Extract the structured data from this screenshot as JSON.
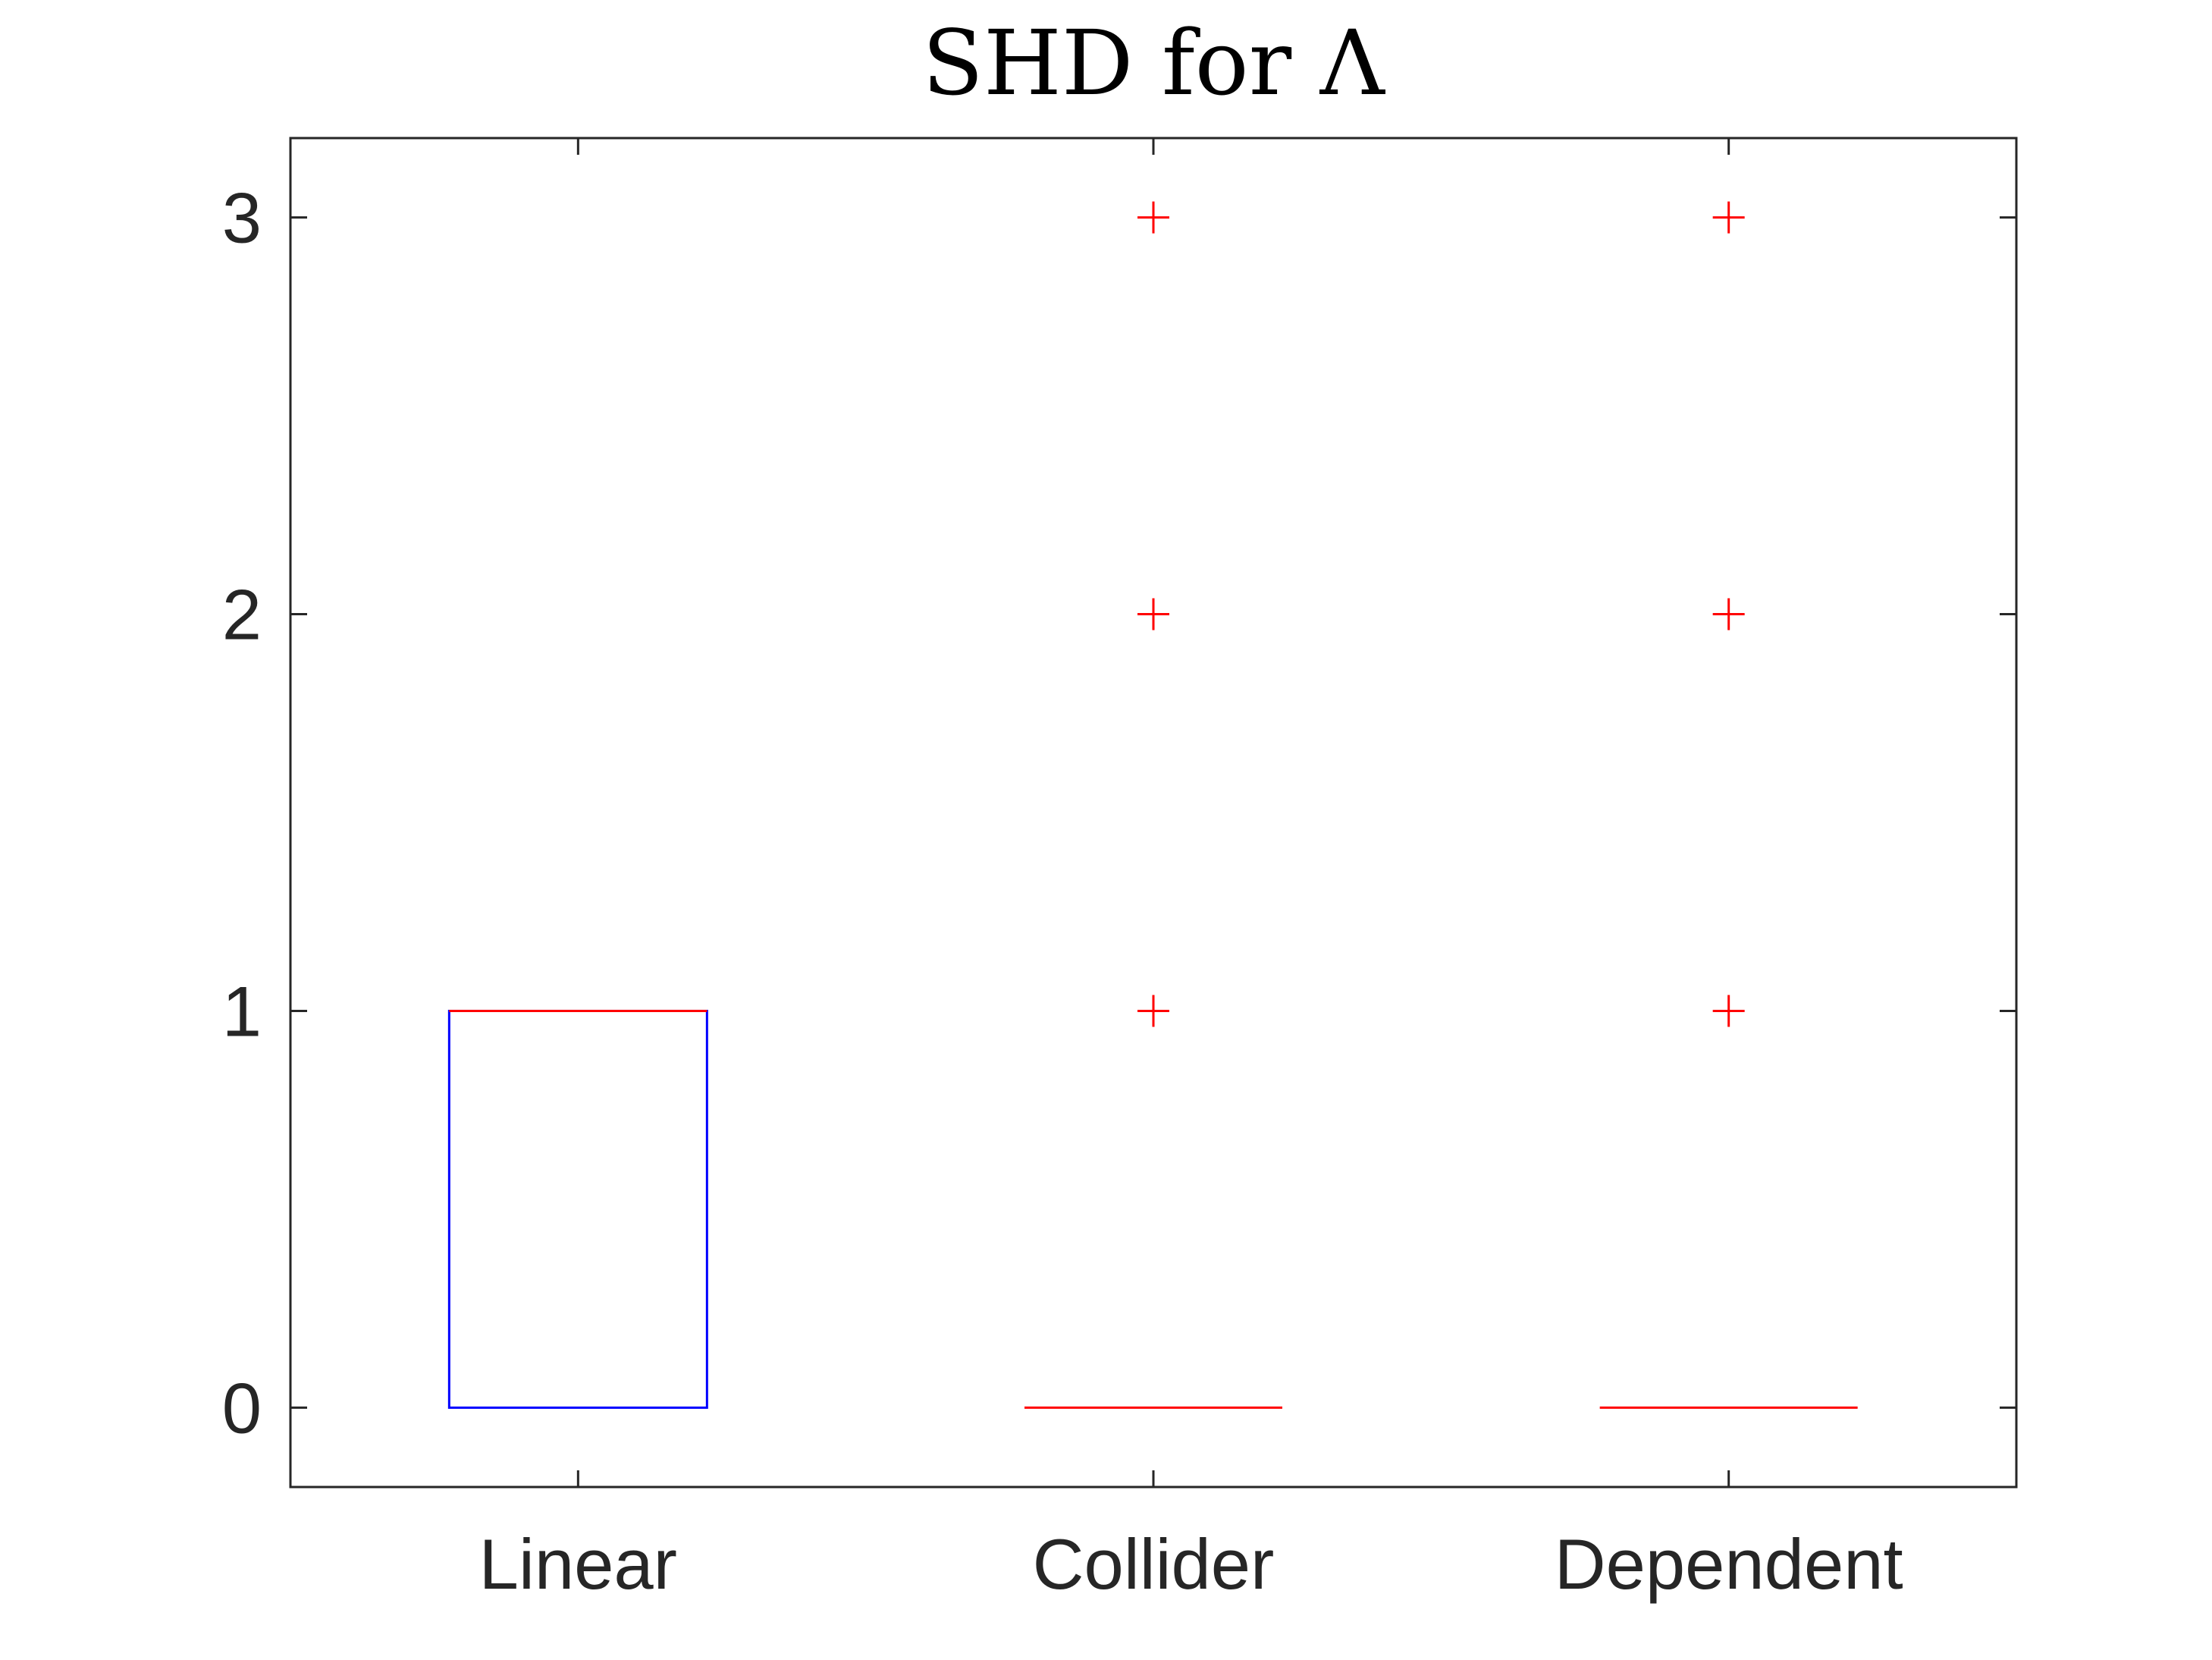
{
  "chart_data": {
    "type": "box",
    "title": "SHD for Λ",
    "xlabel": "",
    "ylabel": "",
    "categories": [
      "Linear",
      "Collider",
      "Dependent"
    ],
    "ylim": [
      -0.2,
      3.2
    ],
    "yticks": [
      "0",
      "1",
      "2",
      "3"
    ],
    "grid": false,
    "boxes": [
      {
        "category": "Linear",
        "q1": 0,
        "median": 1,
        "q3": 1,
        "whisker_low": 0,
        "whisker_high": 1,
        "outliers": []
      },
      {
        "category": "Collider",
        "q1": 0,
        "median": 0,
        "q3": 0,
        "whisker_low": 0,
        "whisker_high": 0,
        "outliers": [
          1,
          2,
          3
        ]
      },
      {
        "category": "Dependent",
        "q1": 0,
        "median": 0,
        "q3": 0,
        "whisker_low": 0,
        "whisker_high": 0,
        "outliers": [
          1,
          2,
          3
        ]
      }
    ],
    "colors": {
      "box": "#0000ff",
      "median": "#ff0000",
      "outlier": "#ff0000",
      "axis": "#262626"
    }
  }
}
